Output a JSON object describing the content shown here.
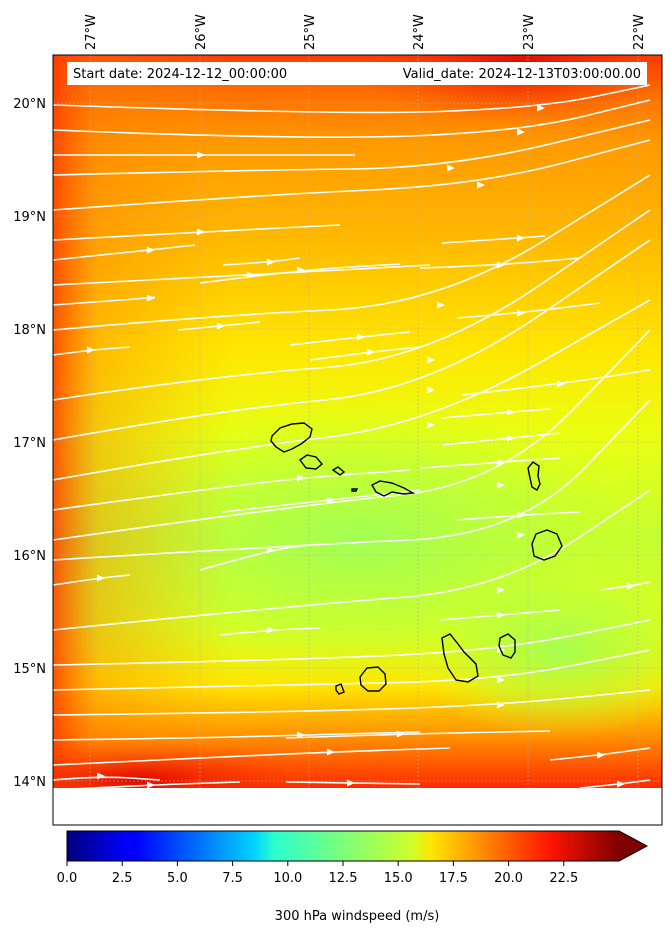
{
  "map": {
    "lon_ticks": [
      "27°W",
      "26°W",
      "25°W",
      "24°W",
      "23°W",
      "22°W"
    ],
    "lat_ticks": [
      "20°N",
      "19°N",
      "18°N",
      "17°N",
      "16°N",
      "15°N",
      "14°N"
    ],
    "start_date": "Start date: 2024-12-12_00:00:00",
    "valid_date": "Valid_date: 2024-12-13T03:00:00.00",
    "field": "300 hPa windspeed",
    "streamline_color": "#ffffff",
    "coastline_color": "#000000"
  },
  "colorbar": {
    "label": "300 hPa windspeed (m/s)",
    "ticks": [
      "0.0",
      "2.5",
      "5.0",
      "7.5",
      "10.0",
      "12.5",
      "15.0",
      "17.5",
      "20.0",
      "22.5"
    ],
    "min": 0,
    "max": 25,
    "extend": "max",
    "colormap": "jet",
    "over_color": "#7f0000"
  }
}
